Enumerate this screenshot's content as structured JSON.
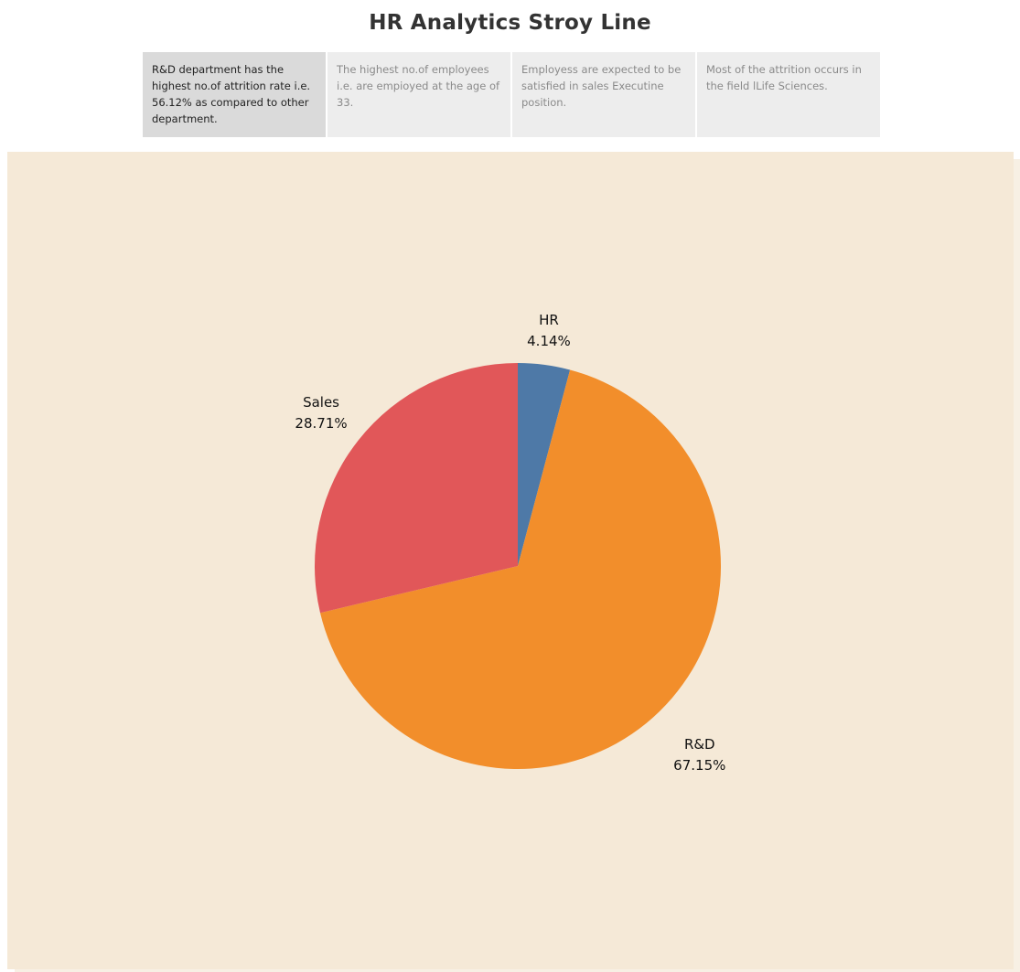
{
  "story": {
    "title": "HR Analytics Stroy Line",
    "points": [
      {
        "text": "R&D department has the highest no.of attrition rate i.e. 56.12% as compared to other department.",
        "active": true
      },
      {
        "text": "The highest no.of employees i.e. are empioyed at the age of 33.",
        "active": false
      },
      {
        "text": "Employess are expected to be satisfied in sales Executine position.",
        "active": false
      },
      {
        "text": "Most of the attrition occurs in the field lLife Sciences.",
        "active": false
      }
    ]
  },
  "chart_data": {
    "type": "pie",
    "title": "",
    "start": "top",
    "direction": "clockwise",
    "slices": [
      {
        "name": "HR",
        "value": 4.14,
        "label": "4.14%",
        "color": "#4e79a7"
      },
      {
        "name": "R&D",
        "value": 67.15,
        "label": "67.15%",
        "color": "#f28e2b"
      },
      {
        "name": "Sales",
        "value": 28.71,
        "label": "28.71%",
        "color": "#e15759"
      }
    ]
  }
}
